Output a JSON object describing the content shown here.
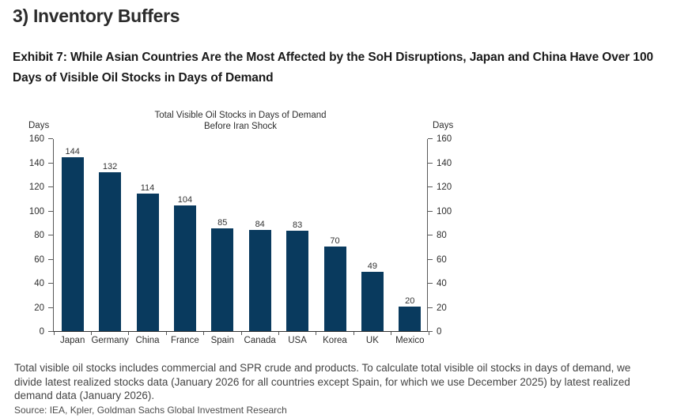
{
  "page": {
    "heading": "3) Inventory Buffers",
    "exhibit_title": "Exhibit 7: While Asian Countries Are the Most Affected by the SoH Disruptions, Japan and China Have Over 100 Days of Visible Oil Stocks in Days of Demand",
    "footnote": "Total visible oil stocks includes commercial and SPR crude and products. To calculate total visible oil stocks in days of demand, we divide latest realized stocks data (January 2026 for all countries except Spain, for which we use December 2025) by latest realized demand data (January 2026).",
    "source": "Source: IEA, Kpler, Goldman Sachs Global Investment Research"
  },
  "chart_data": {
    "type": "bar",
    "title": "Total Visible Oil Stocks in Days of Demand",
    "subtitle": "Before Iran Shock",
    "left_axis_label": "Days",
    "right_axis_label": "Days",
    "categories": [
      "Japan",
      "Germany",
      "China",
      "France",
      "Spain",
      "Canada",
      "USA",
      "Korea",
      "UK",
      "Mexico"
    ],
    "values": [
      144,
      132,
      114,
      104,
      85,
      84,
      83,
      70,
      49,
      20
    ],
    "ylim": [
      0,
      160
    ],
    "ytick_step": 20,
    "bar_color": "#093a5e",
    "grid": false,
    "legend": "none",
    "data_labels": true
  }
}
